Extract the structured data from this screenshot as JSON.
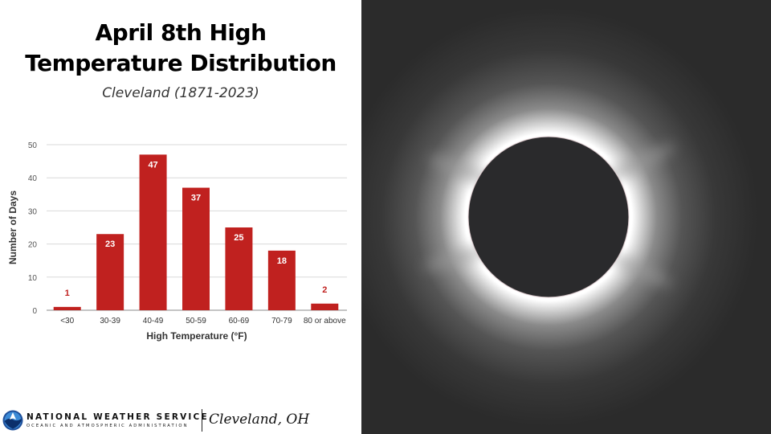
{
  "title_line1": "April 8th High",
  "title_line2": "Temperature Distribution",
  "subtitle": "Cleveland (1871-2023)",
  "chart_data": {
    "type": "bar",
    "categories": [
      "<30",
      "30-39",
      "40-49",
      "50-59",
      "60-69",
      "70-79",
      "80 or above"
    ],
    "values": [
      1,
      23,
      47,
      37,
      25,
      18,
      2
    ],
    "xlabel": "High Temperature (°F)",
    "ylabel": "Number of Days",
    "ylim": [
      0,
      50
    ],
    "yticks": [
      0,
      10,
      20,
      30,
      40,
      50
    ],
    "grid": true,
    "bar_color": "#c0211f"
  },
  "footer": {
    "org_name": "NATIONAL WEATHER SERVICE",
    "org_sub": "OCEANIC AND ATMOSPHERIC ADMINISTRATION",
    "office": "Cleveland, OH",
    "logo_icon": "noaa-logo-icon"
  },
  "photo": {
    "icon": "solar-eclipse-photo"
  }
}
